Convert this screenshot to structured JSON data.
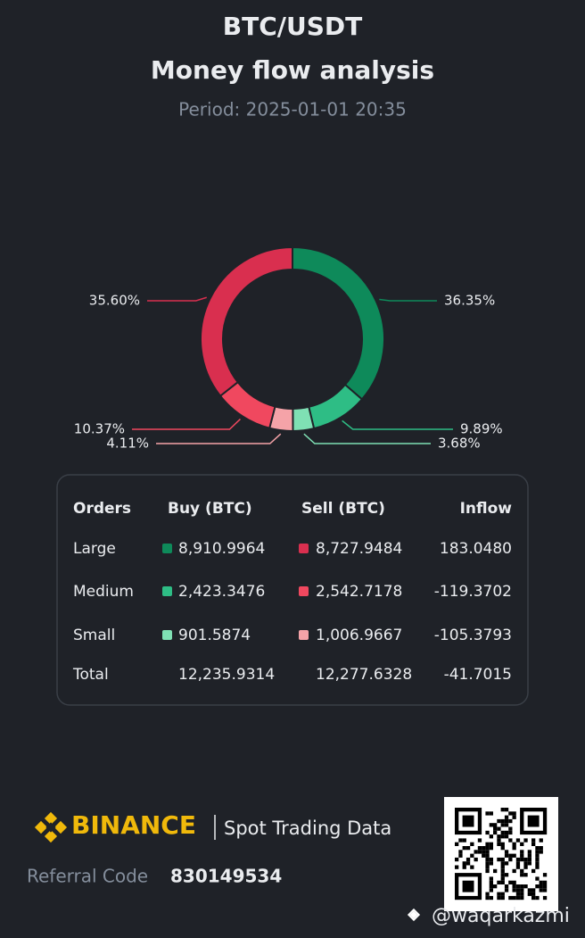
{
  "header": {
    "pair": "BTC/USDT",
    "title": "Money flow analysis",
    "period": "Period: 2025-01-01 20:35"
  },
  "chart_data": {
    "type": "pie",
    "values": [
      36.35,
      9.89,
      3.68,
      4.11,
      10.37,
      35.6
    ],
    "value_labels": [
      "36.35%",
      "9.89%",
      "3.68%",
      "4.11%",
      "10.37%",
      "35.60%"
    ],
    "colors": [
      "#0e8a5a",
      "#2ebd85",
      "#7fe0b4",
      "#f5a3a8",
      "#f0485f",
      "#d92f4f"
    ]
  },
  "table": {
    "header": [
      "Orders",
      "Buy (BTC)",
      "Sell (BTC)",
      "Inflow"
    ],
    "rows": [
      [
        "Large",
        "8,910.9964",
        "8,727.9484",
        "183.0480"
      ],
      [
        "Medium",
        "2,423.3476",
        "2,542.7178",
        "-119.3702"
      ],
      [
        "Small",
        "901.5874",
        "1,006.9667",
        "-105.3793"
      ],
      [
        "Total",
        "12,235.9314",
        "12,277.6328",
        "-41.7015"
      ]
    ]
  },
  "footer": {
    "brand": "BINANCE",
    "product": "Spot Trading Data",
    "referral_label": "Referral Code",
    "referral_code": "830149534",
    "watermark": "@waqarkazmi"
  }
}
